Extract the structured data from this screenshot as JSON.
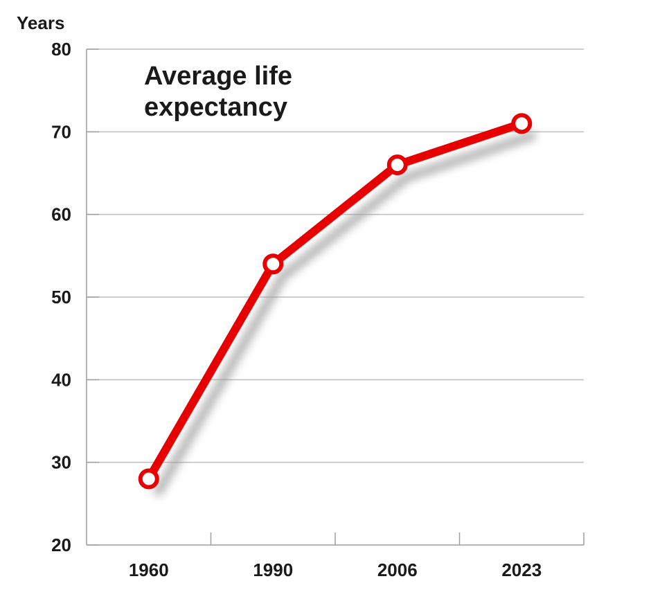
{
  "chart_data": {
    "type": "line",
    "title_lines": [
      "Average life",
      "expectancy"
    ],
    "ylabel": "Years",
    "xlabel": "",
    "categories": [
      "1960",
      "1990",
      "2006",
      "2023"
    ],
    "series": [
      {
        "values": [
          28,
          54,
          66,
          71
        ]
      }
    ],
    "ylim": [
      20,
      80
    ],
    "yticks": [
      20,
      30,
      40,
      50,
      60,
      70,
      80
    ],
    "grid": true,
    "colors": {
      "line": "#e60000",
      "marker_fill": "#ffffff",
      "shadow": "#9a9a9a"
    }
  }
}
